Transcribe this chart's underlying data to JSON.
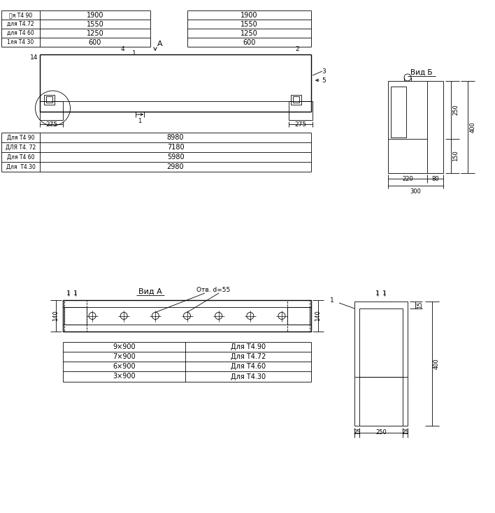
{
  "bg": "#ffffff",
  "lw1": 0.6,
  "lw2": 1.0,
  "top_table_left_labels": [
    "且я Т4 90",
    "для Т4.72",
    "для Т4 60",
    "1ля Т4 30"
  ],
  "top_table_left_vals": [
    "1900",
    "1550",
    "1250",
    "600"
  ],
  "top_table_right_vals": [
    "1900",
    "1550",
    "1250",
    "600"
  ],
  "bot_table_labels": [
    "Для Т4 90",
    "ДЛЯ Т4. 72",
    "Для Т4 60",
    "Для  Т4.30"
  ],
  "bot_table_vals": [
    "8980",
    "7180",
    "5980",
    "2980"
  ],
  "vidb_label": "Вид Б",
  "vidb_dims_right": [
    "250",
    "150",
    "400"
  ],
  "vidb_dims_bot": [
    "220",
    "80",
    "300"
  ],
  "vida_label": "Вид A",
  "vida_otv": "Отв. d=55",
  "vida_dim140": "140",
  "cs_dims_bot": [
    "25",
    "250",
    "25"
  ],
  "cs_dim_right": [
    "15",
    "400"
  ],
  "vida_table_vals": [
    "9×900",
    "7×900",
    "6×900",
    "3×900"
  ],
  "vida_table_labels": [
    "Для Т4.90",
    "Для Т4.72",
    "Для Т4.60",
    "Для Т4.30"
  ],
  "label275": "275",
  "label14": "14"
}
